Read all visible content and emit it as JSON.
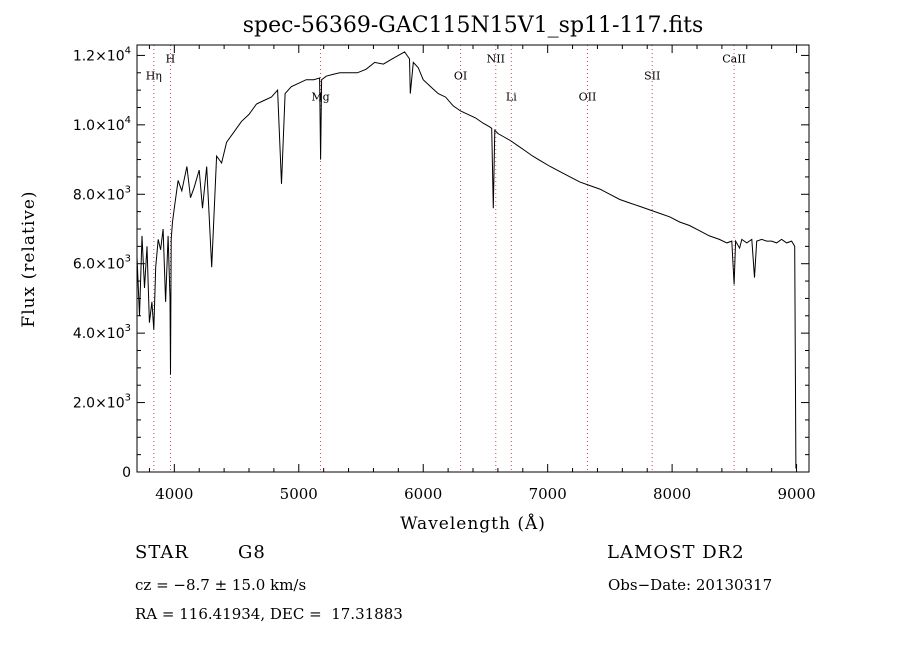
{
  "chart_data": {
    "type": "line",
    "title": "spec-56369-GAC115N15V1_sp11-117.fits",
    "xlabel": "Wavelength (Å)",
    "ylabel": "Flux (relative)",
    "xlim": [
      3700,
      9100
    ],
    "ylim": [
      0,
      12300
    ],
    "x_ticks": [
      4000,
      5000,
      6000,
      7000,
      8000,
      9000
    ],
    "y_ticks": [
      {
        "value": 0,
        "mantissa": "0",
        "exp": ""
      },
      {
        "value": 2000,
        "mantissa": "2.0×10",
        "exp": "3"
      },
      {
        "value": 4000,
        "mantissa": "4.0×10",
        "exp": "3"
      },
      {
        "value": 6000,
        "mantissa": "6.0×10",
        "exp": "3"
      },
      {
        "value": 8000,
        "mantissa": "8.0×10",
        "exp": "3"
      },
      {
        "value": 10000,
        "mantissa": "1.0×10",
        "exp": "4"
      },
      {
        "value": 12000,
        "mantissa": "1.2×10",
        "exp": "4"
      }
    ],
    "grid": false,
    "line_markers": [
      {
        "label": "Hη",
        "x": 3835,
        "label_y": 11300
      },
      {
        "label": "H",
        "x": 3969,
        "label_y": 11800
      },
      {
        "label": "Mg",
        "x": 5175,
        "label_y": 10700
      },
      {
        "label": "OI",
        "x": 6300,
        "label_y": 11300
      },
      {
        "label": "NII",
        "x": 6583,
        "label_y": 11800
      },
      {
        "label": "Li",
        "x": 6708,
        "label_y": 10700
      },
      {
        "label": "OII",
        "x": 7320,
        "label_y": 10700
      },
      {
        "label": "SII",
        "x": 7840,
        "label_y": 11300
      },
      {
        "label": "CaII",
        "x": 8498,
        "label_y": 11800
      }
    ],
    "series": [
      {
        "x": [
          3700,
          3720,
          3740,
          3760,
          3780,
          3800,
          3820,
          3835,
          3850,
          3870,
          3890,
          3910,
          3930,
          3950,
          3965,
          3969,
          3975,
          3985,
          4000,
          4030,
          4060,
          4101,
          4130,
          4160,
          4200,
          4226,
          4260,
          4300,
          4340,
          4380,
          4420,
          4480,
          4540,
          4600,
          4660,
          4720,
          4780,
          4830,
          4861,
          4890,
          4940,
          5000,
          5060,
          5120,
          5167,
          5175,
          5183,
          5220,
          5270,
          5330,
          5400,
          5470,
          5540,
          5610,
          5680,
          5750,
          5800,
          5850,
          5890,
          5896,
          5920,
          5960,
          6000,
          6060,
          6120,
          6180,
          6240,
          6300,
          6360,
          6420,
          6480,
          6530,
          6550,
          6563,
          6575,
          6600,
          6650,
          6700,
          6760,
          6820,
          6880,
          6950,
          7020,
          7100,
          7180,
          7260,
          7340,
          7420,
          7500,
          7580,
          7660,
          7740,
          7820,
          7900,
          7980,
          8060,
          8140,
          8220,
          8300,
          8380,
          8440,
          8480,
          8498,
          8510,
          8542,
          8560,
          8600,
          8640,
          8662,
          8680,
          8720,
          8760,
          8800,
          8840,
          8880,
          8920,
          8960,
          8985,
          8995
        ],
        "y": [
          6200,
          4500,
          6800,
          5300,
          6500,
          4300,
          4900,
          4100,
          5900,
          6700,
          6400,
          7000,
          4900,
          6800,
          5000,
          2800,
          6700,
          7200,
          7600,
          8400,
          8100,
          8800,
          7900,
          8200,
          8700,
          7600,
          8800,
          5900,
          9100,
          8900,
          9500,
          9800,
          10100,
          10300,
          10600,
          10700,
          10800,
          11000,
          8300,
          10900,
          11100,
          11200,
          11300,
          11300,
          11350,
          9000,
          11300,
          11400,
          11450,
          11500,
          11500,
          11500,
          11600,
          11800,
          11750,
          11900,
          12000,
          12100,
          11900,
          10900,
          11800,
          11650,
          11300,
          11100,
          10900,
          10800,
          10550,
          10400,
          10300,
          10200,
          10050,
          9950,
          9900,
          7600,
          9850,
          9750,
          9650,
          9550,
          9400,
          9250,
          9100,
          8950,
          8800,
          8650,
          8500,
          8350,
          8250,
          8150,
          8000,
          7850,
          7750,
          7650,
          7550,
          7450,
          7350,
          7200,
          7100,
          6950,
          6800,
          6700,
          6600,
          6650,
          5400,
          6650,
          6450,
          6700,
          6600,
          6700,
          5600,
          6650,
          6700,
          6650,
          6650,
          6600,
          6700,
          6600,
          6650,
          6500,
          100
        ]
      }
    ]
  },
  "footer": {
    "object_class": "STAR",
    "subclass": "G8",
    "survey": "LAMOST DR2",
    "cz": "cz = −8.7 ± 15.0 km/s",
    "obs_date": "Obs−Date: 20130317",
    "coords": "RA = 116.41934, DEC =  17.31883"
  }
}
